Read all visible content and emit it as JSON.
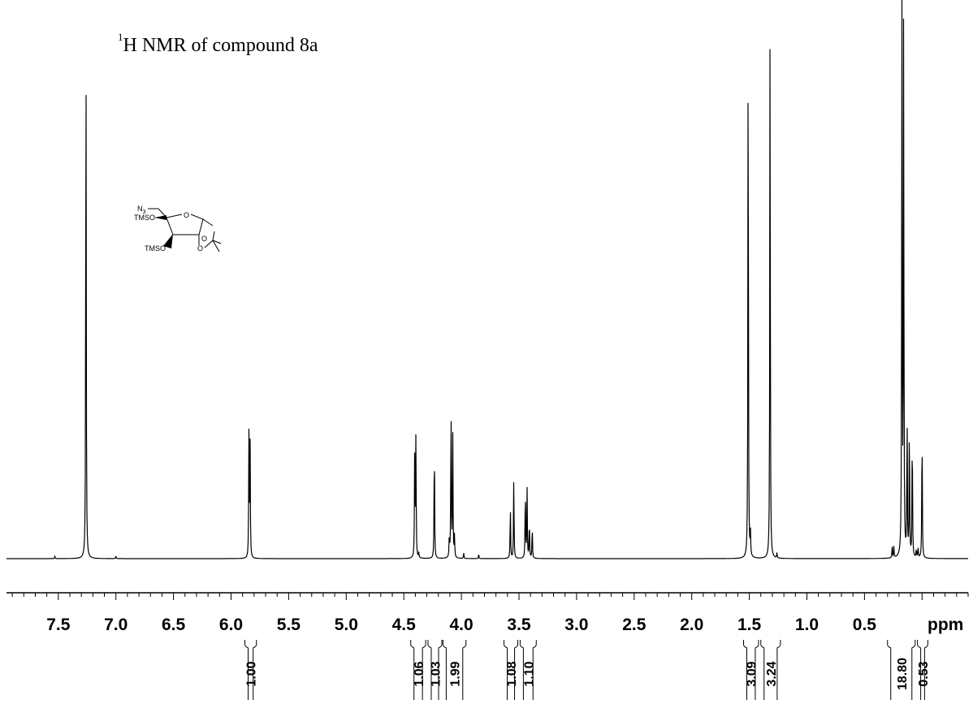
{
  "title": {
    "superscript": "1",
    "text": "H NMR of compound 8a"
  },
  "structure": {
    "labels": {
      "azide": "N",
      "azide_subscript": "3",
      "tms_top": "TMSO",
      "tms_bottom": "TMSO",
      "ring_o": "O",
      "acetonide_o1": "O",
      "acetonide_o2": "O"
    }
  },
  "chart_data": {
    "type": "line",
    "xlabel": "ppm",
    "xlim": [
      7.95,
      -0.4
    ],
    "reversed_axis": true,
    "tick_labels": [
      "7.5",
      "7.0",
      "6.5",
      "6.0",
      "5.5",
      "5.0",
      "4.5",
      "4.0",
      "3.5",
      "3.0",
      "2.5",
      "2.0",
      "1.5",
      "1.0",
      "0.5"
    ],
    "tick_values": [
      7.5,
      7.0,
      6.5,
      6.0,
      5.5,
      5.0,
      4.5,
      4.0,
      3.5,
      3.0,
      2.5,
      2.0,
      1.5,
      1.0,
      0.5
    ],
    "peaks": [
      {
        "ppm": 7.53,
        "height": 0.004
      },
      {
        "ppm": 7.26,
        "height": 1.0
      },
      {
        "ppm": 7.0,
        "height": 0.005
      },
      {
        "ppm": 5.845,
        "height": 0.22
      },
      {
        "ppm": 5.835,
        "height": 0.22
      },
      {
        "ppm": 4.405,
        "height": 0.22
      },
      {
        "ppm": 4.395,
        "height": 0.22
      },
      {
        "ppm": 4.37,
        "height": 0.01
      },
      {
        "ppm": 4.235,
        "height": 0.22
      },
      {
        "ppm": 4.105,
        "height": 0.04
      },
      {
        "ppm": 4.09,
        "height": 0.29
      },
      {
        "ppm": 4.075,
        "height": 0.22
      },
      {
        "ppm": 4.06,
        "height": 0.04
      },
      {
        "ppm": 3.98,
        "height": 0.01
      },
      {
        "ppm": 3.85,
        "height": 0.008
      },
      {
        "ppm": 3.575,
        "height": 0.095
      },
      {
        "ppm": 3.545,
        "height": 0.15
      },
      {
        "ppm": 3.445,
        "height": 0.13
      },
      {
        "ppm": 3.43,
        "height": 0.13
      },
      {
        "ppm": 3.41,
        "height": 0.07
      },
      {
        "ppm": 3.385,
        "height": 0.06
      },
      {
        "ppm": 1.51,
        "height": 1.0
      },
      {
        "ppm": 1.49,
        "height": 0.04
      },
      {
        "ppm": 1.32,
        "height": 1.0
      },
      {
        "ppm": 1.26,
        "height": 0.01
      },
      {
        "ppm": 0.26,
        "height": 0.02
      },
      {
        "ppm": 0.245,
        "height": 0.02
      },
      {
        "ppm": 0.175,
        "height": 1.0
      },
      {
        "ppm": 0.16,
        "height": 1.0
      },
      {
        "ppm": 0.13,
        "height": 0.26
      },
      {
        "ppm": 0.11,
        "height": 0.25
      },
      {
        "ppm": 0.085,
        "height": 0.24
      },
      {
        "ppm": 0.05,
        "height": 0.015
      },
      {
        "ppm": 0.035,
        "height": 0.02
      },
      {
        "ppm": 0.0,
        "height": 0.25
      }
    ],
    "integrals": [
      {
        "label": "1.00",
        "from": 5.88,
        "to": 5.78
      },
      {
        "label": "1.06",
        "from": 4.44,
        "to": 4.31
      },
      {
        "label": "1.03",
        "from": 4.29,
        "to": 4.17
      },
      {
        "label": "1.99",
        "from": 4.16,
        "to": 3.96
      },
      {
        "label": "1.08",
        "from": 3.63,
        "to": 3.51
      },
      {
        "label": "1.10",
        "from": 3.49,
        "to": 3.35
      },
      {
        "label": "3.09",
        "from": 1.55,
        "to": 1.42
      },
      {
        "label": "3.24",
        "from": 1.4,
        "to": 1.23
      },
      {
        "label": "18.80",
        "from": 0.3,
        "to": 0.06
      },
      {
        "label": "0.53",
        "from": 0.04,
        "to": -0.05
      }
    ]
  }
}
